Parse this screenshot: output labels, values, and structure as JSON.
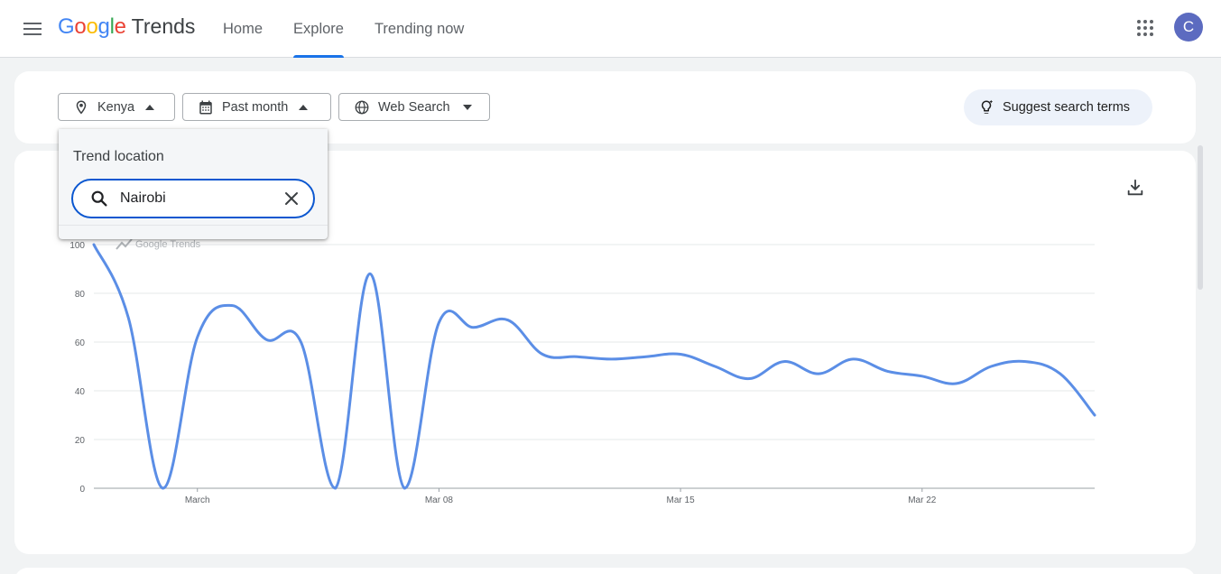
{
  "header": {
    "logo_google": [
      "G",
      "o",
      "o",
      "g",
      "l",
      "e"
    ],
    "logo_colors": [
      "#4285f4",
      "#ea4335",
      "#fbbc05",
      "#4285f4",
      "#34a853",
      "#ea4335"
    ],
    "logo_trends": "Trends",
    "nav": [
      {
        "label": "Home",
        "active": false
      },
      {
        "label": "Explore",
        "active": true
      },
      {
        "label": "Trending now",
        "active": false
      }
    ],
    "avatar_initial": "C",
    "accent_color": "#1a73e8",
    "avatar_color": "#5c6bc0"
  },
  "filters": {
    "location": "Kenya",
    "time_range": "Past month",
    "search_type": "Web Search",
    "suggest_label": "Suggest search terms"
  },
  "dropdown": {
    "title": "Trend location",
    "input_value": "Nairobi"
  },
  "chart_data": {
    "type": "line",
    "watermark": "Google Trends",
    "ylim": [
      0,
      100
    ],
    "yticks": [
      "0",
      "20",
      "40",
      "60",
      "80",
      "100"
    ],
    "xticks": [
      "March",
      "Mar 08",
      "Mar 15",
      "Mar 22"
    ],
    "x": [
      "Feb 26",
      "Feb 27",
      "Feb 28",
      "Mar 1",
      "Mar 2",
      "Mar 3",
      "Mar 4",
      "Mar 5",
      "Mar 6",
      "Mar 7",
      "Mar 8",
      "Mar 9",
      "Mar 10",
      "Mar 11",
      "Mar 12",
      "Mar 13",
      "Mar 14",
      "Mar 15",
      "Mar 16",
      "Mar 17",
      "Mar 18",
      "Mar 19",
      "Mar 20",
      "Mar 21",
      "Mar 22",
      "Mar 23",
      "Mar 24",
      "Mar 25",
      "Mar 26",
      "Mar 27"
    ],
    "series": [
      {
        "values": [
          100,
          70,
          0,
          62,
          75,
          61,
          60,
          0,
          88,
          0,
          68,
          66,
          69,
          55,
          54,
          53,
          54,
          55,
          50,
          45,
          52,
          47,
          53,
          48,
          46,
          43,
          50,
          52,
          47,
          30
        ],
        "color": "#5b8ee6"
      }
    ],
    "grid": true
  }
}
